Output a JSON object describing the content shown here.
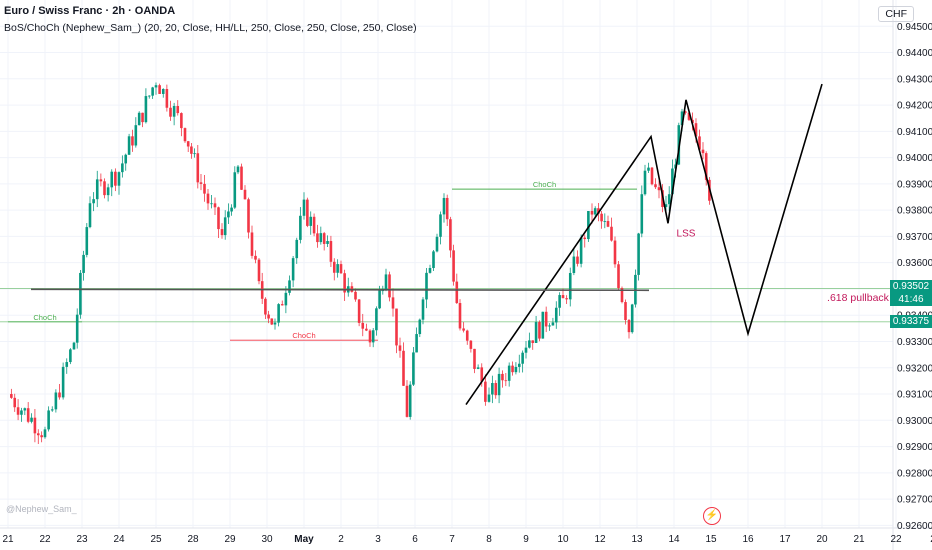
{
  "header": {
    "title": "Euro / Swiss Franc · 2h · OANDA",
    "indicator": "BoS/ChoCh (Nephew_Sam_) (20, 20, Close, HH/LL, 250, Close, 250, Close, 250, Close)",
    "currency": "CHF"
  },
  "watermark": "@Nephew_Sam_",
  "colors": {
    "up": "#089981",
    "down": "#f23645",
    "choch_up": "#4caf50",
    "choch_down": "#f23645",
    "drawing": "#000000",
    "label_pink": "#c2185b",
    "grid": "#f0f3fa"
  },
  "price_tags": {
    "current": {
      "price": "0.93502",
      "countdown": "41:46",
      "color": "#089981"
    },
    "level": {
      "price": "0.93375",
      "color": "#089981"
    }
  },
  "chart_data": {
    "type": "candlestick",
    "y_axis": {
      "ticks": [
        "0.94500",
        "0.94400",
        "0.94300",
        "0.94200",
        "0.94100",
        "0.94000",
        "0.93900",
        "0.93800",
        "0.93700",
        "0.93600",
        "0.93500",
        "0.93400",
        "0.93300",
        "0.93200",
        "0.93100",
        "0.93000",
        "0.92900",
        "0.92800",
        "0.92700",
        "0.92600"
      ],
      "range": [
        0.9259,
        0.946
      ]
    },
    "x_axis": {
      "ticks": [
        "21",
        "22",
        "23",
        "24",
        "25",
        "28",
        "29",
        "30",
        "May",
        "2",
        "3",
        "6",
        "7",
        "8",
        "9",
        "10",
        "12",
        "13",
        "14",
        "15",
        "16",
        "17",
        "20",
        "21",
        "22",
        "2"
      ]
    },
    "path_anchors": [
      {
        "x": "21",
        "close": 0.931
      },
      {
        "x": "22",
        "close": 0.9295
      },
      {
        "x": "23",
        "close": 0.933
      },
      {
        "x": "23",
        "close": 0.9385
      },
      {
        "x": "24",
        "close": 0.9395
      },
      {
        "x": "25",
        "close": 0.943
      },
      {
        "x": "28",
        "close": 0.941
      },
      {
        "x": "28",
        "close": 0.939
      },
      {
        "x": "29",
        "close": 0.937
      },
      {
        "x": "29",
        "close": 0.9395
      },
      {
        "x": "30",
        "close": 0.935
      },
      {
        "x": "30",
        "close": 0.9335
      },
      {
        "x": "May",
        "close": 0.938
      },
      {
        "x": "2",
        "close": 0.9355
      },
      {
        "x": "3",
        "close": 0.933
      },
      {
        "x": "3",
        "close": 0.936
      },
      {
        "x": "6",
        "close": 0.9303
      },
      {
        "x": "6",
        "close": 0.935
      },
      {
        "x": "7",
        "close": 0.9385
      },
      {
        "x": "7",
        "close": 0.9335
      },
      {
        "x": "8",
        "close": 0.9308
      },
      {
        "x": "9",
        "close": 0.933
      },
      {
        "x": "10",
        "close": 0.9345
      },
      {
        "x": "12",
        "close": 0.938
      },
      {
        "x": "12",
        "close": 0.9372
      },
      {
        "x": "13",
        "close": 0.9335
      },
      {
        "x": "13",
        "close": 0.9395
      },
      {
        "x": "14",
        "close": 0.938
      },
      {
        "x": "14",
        "close": 0.9415
      },
      {
        "x": "15",
        "close": 0.9405
      },
      {
        "x": "15",
        "close": 0.936
      },
      {
        "x": "16",
        "close": 0.934
      },
      {
        "x": "16",
        "close": 0.9352
      }
    ],
    "levels": [
      {
        "name": "current-price-line",
        "price": 0.93502
      },
      {
        "name": "level-line",
        "price": 0.93375
      }
    ],
    "choch_marks": [
      {
        "label": "ChoCh",
        "price": 0.9388,
        "from": "7",
        "to": "13",
        "color": "#4caf50"
      },
      {
        "label": "ChoCh",
        "price": 0.93305,
        "from": "29",
        "to": "3",
        "color": "#f23645"
      },
      {
        "label": "ChoCh",
        "price": 0.93375,
        "from": "21",
        "to": "23",
        "color": "#4caf50"
      }
    ],
    "drawings": {
      "zigzag": [
        {
          "x": "7",
          "price": 0.9306
        },
        {
          "x": "13",
          "price": 0.9408
        },
        {
          "x": "14",
          "price": 0.9375
        },
        {
          "x": "14",
          "price": 0.9422
        },
        {
          "x": "16",
          "price": 0.9333
        },
        {
          "x": "20",
          "price": 0.9428
        }
      ],
      "pullback_line": {
        "from": "13",
        "to": "22",
        "price": 0.93495
      }
    },
    "annotations": [
      {
        "text": "LSS",
        "x": "14",
        "price": 0.937
      },
      {
        "text": ".618 pullback",
        "x": "20",
        "price": 0.93455
      }
    ]
  }
}
